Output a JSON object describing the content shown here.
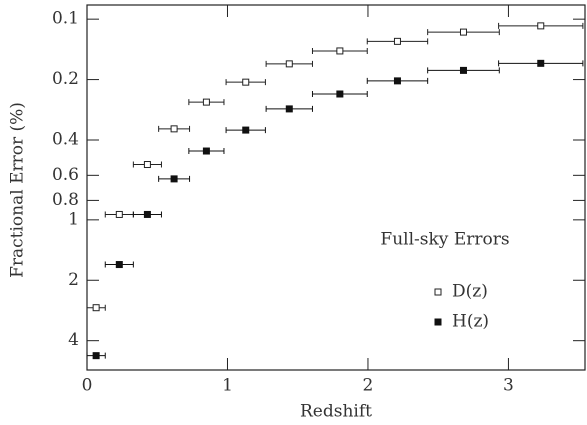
{
  "chart_data": {
    "type": "errorbar-scatter",
    "annotation": "Full-sky Errors",
    "xlabel": "Redshift",
    "ylabel": "Fractional Error (%)",
    "xlim": [
      0,
      3.545
    ],
    "ylim": [
      0.085,
      5.6
    ],
    "y_log": true,
    "y_inverted": true,
    "xticks": [
      0,
      1,
      2,
      3
    ],
    "yticks": [
      0.1,
      0.2,
      0.4,
      0.6,
      0.8,
      1,
      2,
      4
    ],
    "legend": "right",
    "x": [
      0.065,
      0.23,
      0.43,
      0.62,
      0.85,
      1.13,
      1.44,
      1.8,
      2.21,
      2.68,
      3.23
    ],
    "xerr": [
      0.065,
      0.1,
      0.1,
      0.11,
      0.125,
      0.14,
      0.165,
      0.195,
      0.215,
      0.255,
      0.3
    ],
    "series": [
      {
        "name": "D(z)",
        "color": "#222222",
        "marker": "open",
        "values": [
          2.74,
          0.94,
          0.53,
          0.352,
          0.259,
          0.206,
          0.167,
          0.144,
          0.129,
          0.116,
          0.108
        ]
      },
      {
        "name": "H(z)",
        "color": "#111111",
        "marker": "filled",
        "values": [
          4.75,
          1.67,
          0.94,
          0.625,
          0.454,
          0.357,
          0.28,
          0.236,
          0.203,
          0.18,
          0.166
        ]
      }
    ]
  }
}
